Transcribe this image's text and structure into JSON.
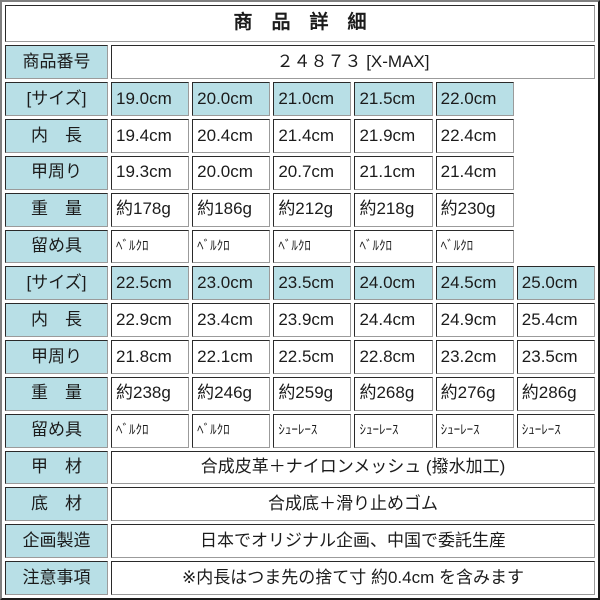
{
  "title": "商　品　詳　細",
  "colors": {
    "header_cell_bg": "#b8dfe6",
    "cell_border_dark": "#2a2a2a",
    "cell_border_light": "#9b9b9b",
    "outer_border_light": "#808080",
    "outer_border_dark": "#1b1b1b",
    "text": "#1b1b1b",
    "background": "#ffffff"
  },
  "rows": [
    {
      "id": "product-number",
      "kind": "info",
      "label": "商品番号",
      "value": "２４８７３ [X-MAX]"
    },
    {
      "id": "size-block1",
      "kind": "size-header",
      "label": "[サイズ]",
      "values": [
        "19.0cm",
        "20.0cm",
        "21.0cm",
        "21.5cm",
        "22.0cm"
      ]
    },
    {
      "id": "inner-length-block1",
      "kind": "size-data",
      "label": "内　長",
      "values": [
        "19.4cm",
        "20.4cm",
        "21.4cm",
        "21.9cm",
        "22.4cm"
      ]
    },
    {
      "id": "instep-girth-block1",
      "kind": "size-data",
      "label": "甲周り",
      "values": [
        "19.3cm",
        "20.0cm",
        "20.7cm",
        "21.1cm",
        "21.4cm"
      ]
    },
    {
      "id": "weight-block1",
      "kind": "size-data",
      "label": "重　量",
      "values": [
        "約178g",
        "約186g",
        "約212g",
        "約218g",
        "約230g"
      ]
    },
    {
      "id": "fastener-block1",
      "kind": "fastener",
      "label": "留め具",
      "values": [
        "ﾍﾞﾙｸﾛ",
        "ﾍﾞﾙｸﾛ",
        "ﾍﾞﾙｸﾛ",
        "ﾍﾞﾙｸﾛ",
        "ﾍﾞﾙｸﾛ"
      ]
    },
    {
      "id": "size-block2",
      "kind": "size-header",
      "label": "[サイズ]",
      "values": [
        "22.5cm",
        "23.0cm",
        "23.5cm",
        "24.0cm",
        "24.5cm",
        "25.0cm"
      ]
    },
    {
      "id": "inner-length-block2",
      "kind": "size-data",
      "label": "内　長",
      "values": [
        "22.9cm",
        "23.4cm",
        "23.9cm",
        "24.4cm",
        "24.9cm",
        "25.4cm"
      ]
    },
    {
      "id": "instep-girth-block2",
      "kind": "size-data",
      "label": "甲周り",
      "values": [
        "21.8cm",
        "22.1cm",
        "22.5cm",
        "22.8cm",
        "23.2cm",
        "23.5cm"
      ]
    },
    {
      "id": "weight-block2",
      "kind": "size-data",
      "label": "重　量",
      "values": [
        "約238g",
        "約246g",
        "約259g",
        "約268g",
        "約276g",
        "約286g"
      ]
    },
    {
      "id": "fastener-block2",
      "kind": "fastener",
      "label": "留め具",
      "values": [
        "ﾍﾞﾙｸﾛ",
        "ﾍﾞﾙｸﾛ",
        "ｼｭｰﾚｰｽ",
        "ｼｭｰﾚｰｽ",
        "ｼｭｰﾚｰｽ",
        "ｼｭｰﾚｰｽ"
      ]
    },
    {
      "id": "upper-material",
      "kind": "info",
      "label": "甲　材",
      "value": "合成皮革＋ナイロンメッシュ (撥水加工)"
    },
    {
      "id": "sole-material",
      "kind": "info",
      "label": "底　材",
      "value": "合成底＋滑り止めゴム"
    },
    {
      "id": "production",
      "kind": "info",
      "label": "企画製造",
      "value": "日本でオリジナル企画、中国で委託生産"
    },
    {
      "id": "notes",
      "kind": "info",
      "label": "注意事項",
      "value": "※内長はつま先の捨て寸 約0.4cm を含みます"
    }
  ],
  "layout": {
    "total_columns": 7
  }
}
